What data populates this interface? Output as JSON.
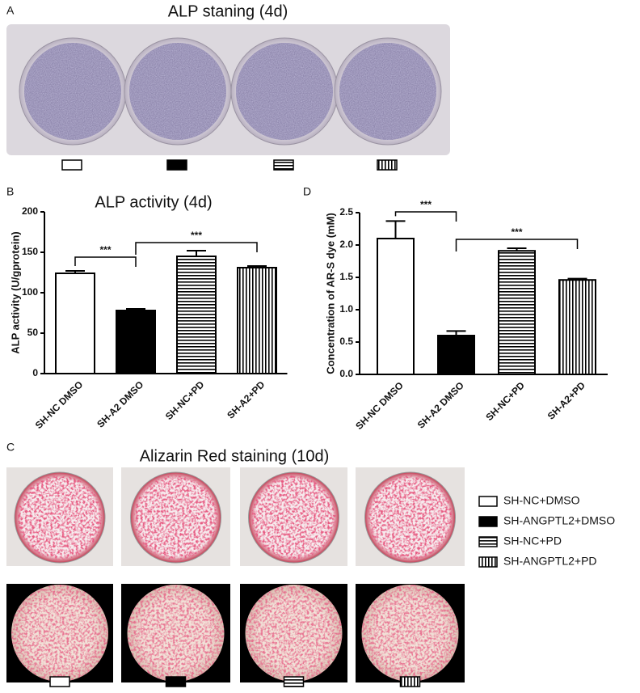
{
  "panel_a": {
    "label": "A",
    "title": "ALP staning (4d)"
  },
  "panel_c": {
    "label": "C",
    "title": "Alizarin Red staining  (10d)",
    "legend": [
      "SH-NC+DMSO",
      "SH-ANGPTL2+DMSO",
      "SH-NC+PD",
      "SH-ANGPTL2+PD"
    ]
  },
  "chart_data": [
    {
      "type": "bar",
      "label": "B",
      "title": "ALP activity (4d)",
      "y_label": "ALP activity (U/gprotein)",
      "categories": [
        "SH-NC DMSO",
        "SH-A2 DMSO",
        "SH-NC+PD",
        "SH-A2+PD"
      ],
      "values": [
        124,
        78,
        145,
        131
      ],
      "errors": [
        3,
        2,
        7,
        2
      ],
      "fills": [
        "white",
        "black",
        "hstripes",
        "vstripes"
      ],
      "color": "#000000",
      "ylim": [
        0,
        200
      ],
      "yticks": [
        0,
        50,
        100,
        150,
        200
      ],
      "annotations": [
        "***",
        "***"
      ]
    },
    {
      "type": "bar",
      "label": "D",
      "title": null,
      "y_label": "Concentration of AR-S dye (mM)",
      "categories": [
        "SH-NC DMSO",
        "SH-A2 DMSO",
        "SH-NC+PD",
        "SH-A2+PD"
      ],
      "values": [
        2.1,
        0.6,
        1.91,
        1.46
      ],
      "errors": [
        0.27,
        0.07,
        0.04,
        0.02
      ],
      "fills": [
        "white",
        "black",
        "hstripes",
        "vstripes"
      ],
      "color": "#000000",
      "ylim": [
        0,
        2.5
      ],
      "yticks": [
        {
          "value": 0,
          "label": "0.0"
        },
        0.5,
        {
          "value": 1,
          "label": "1.0"
        },
        1.5,
        {
          "value": 2,
          "label": "2.0"
        },
        2.5
      ],
      "annotations": [
        "***",
        "***"
      ]
    }
  ]
}
